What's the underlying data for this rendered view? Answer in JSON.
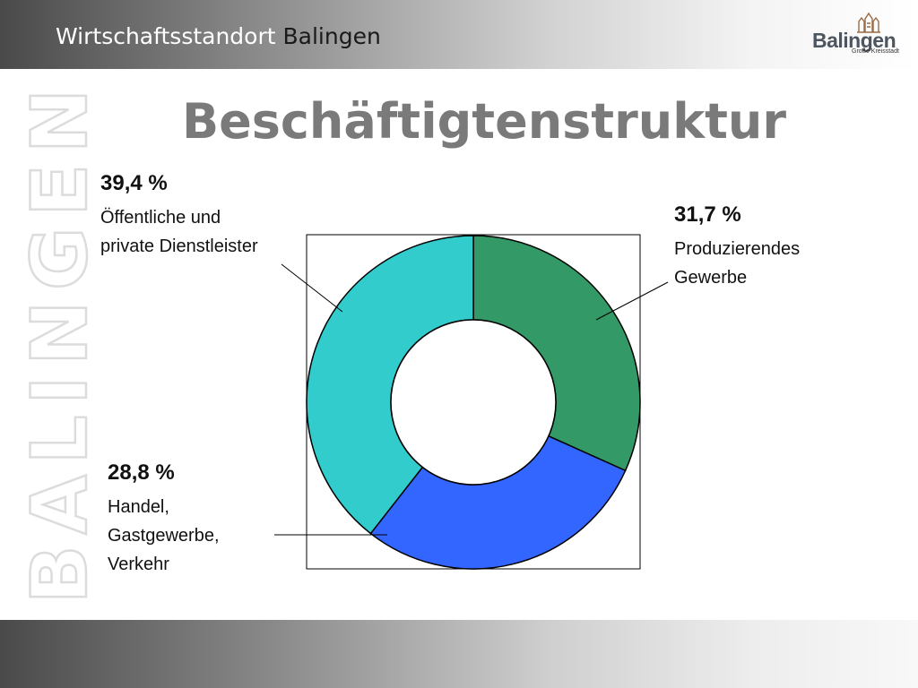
{
  "header": {
    "title_prefix": "Wirtschaftsstandort",
    "title_place": "Balingen"
  },
  "logo": {
    "name": "Balingen",
    "subtitle": "Große Kreisstadt"
  },
  "vertical_brand": "BALINGEN",
  "page_title": "Beschäftigtenstruktur",
  "colors": {
    "producing": "#339966",
    "trade": "#3366ff",
    "services": "#33cccc"
  },
  "chart_data": {
    "type": "pie",
    "variant": "donut",
    "title": "Beschäftigtenstruktur",
    "slices": [
      {
        "label": "Produzierendes\nGewerbe",
        "value": 31.7,
        "value_label": "31,7 %",
        "color": "#339966"
      },
      {
        "label": "Handel,\nGastgewerbe,\nVerkehr",
        "value": 28.8,
        "value_label": "28,8 %",
        "color": "#3366ff"
      },
      {
        "label": "Öffentliche und\nprivate Dienstleister",
        "value": 39.4,
        "value_label": "39,4 %",
        "color": "#33cccc"
      }
    ]
  }
}
